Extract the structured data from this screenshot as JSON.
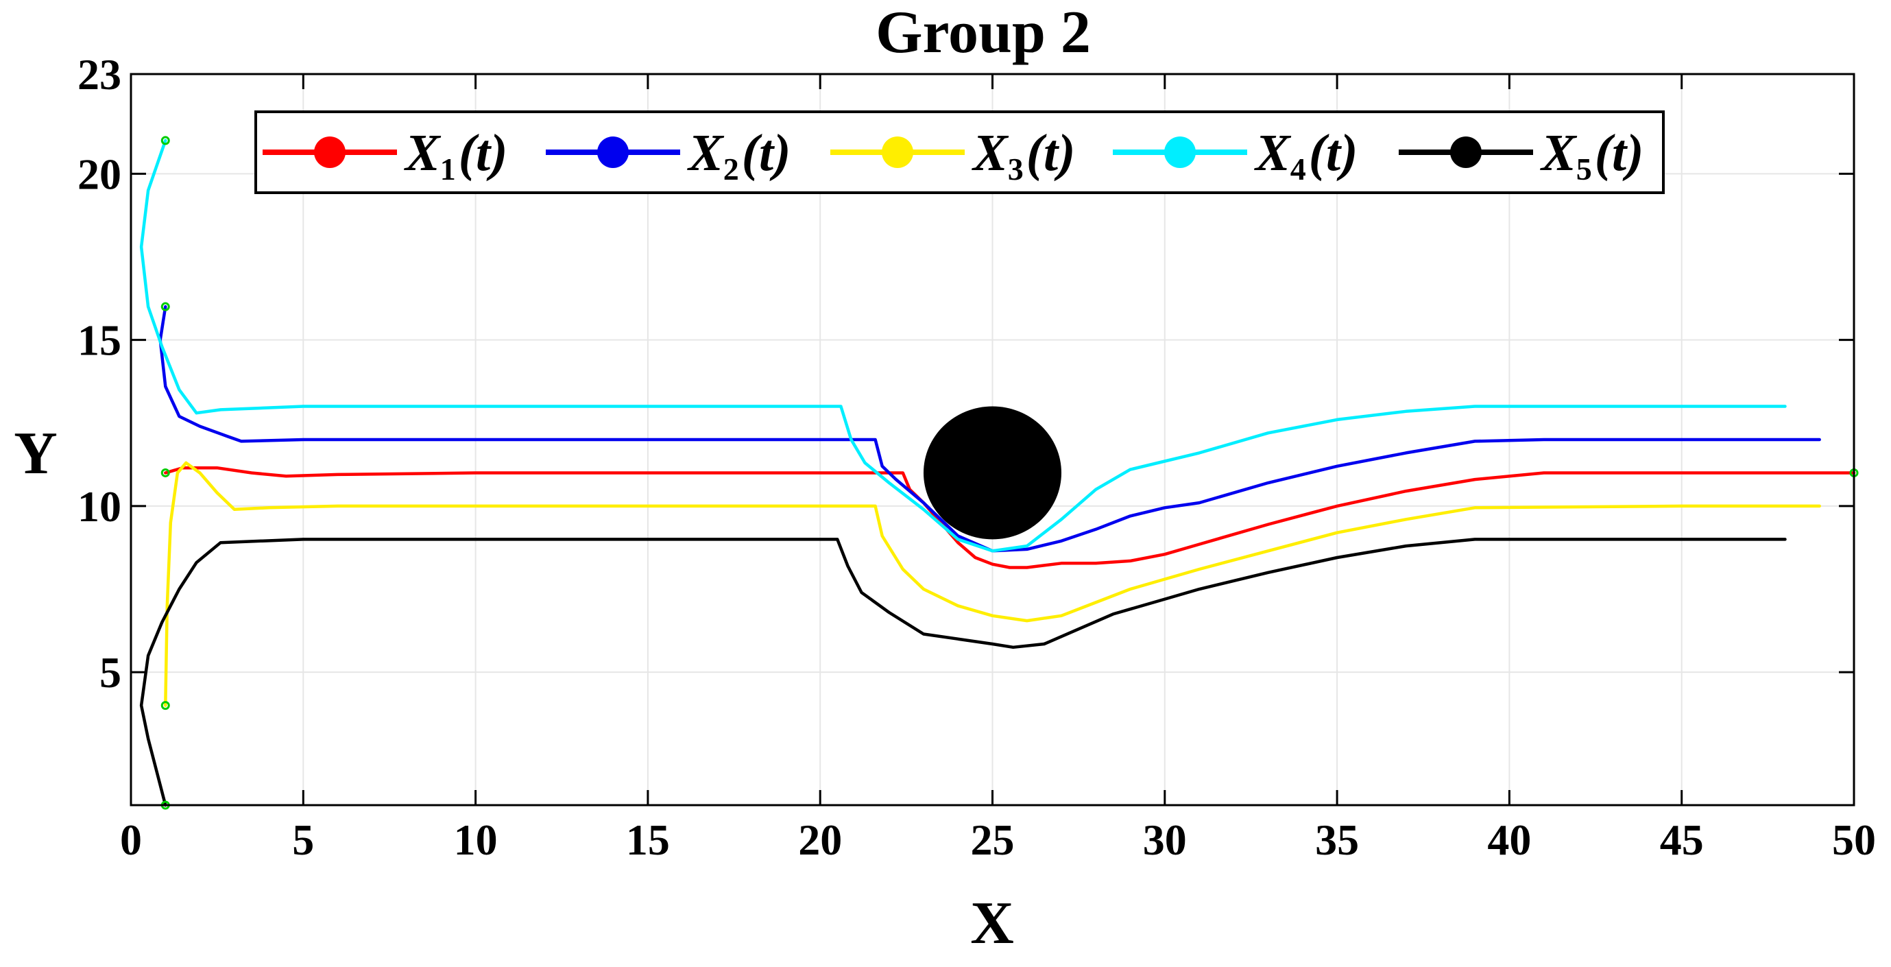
{
  "chart_data": {
    "type": "line",
    "title": "Group 2",
    "xlabel": "X",
    "ylabel": "Y",
    "xlim": [
      0,
      50
    ],
    "ylim": [
      1,
      23
    ],
    "xticks": [
      0,
      5,
      10,
      15,
      20,
      25,
      30,
      35,
      40,
      45,
      50
    ],
    "yticks": [
      5,
      10,
      15,
      20,
      23
    ],
    "grid": true,
    "legend_position": "top",
    "obstacle": {
      "label": "obstacle",
      "cx": 25,
      "cy": 11,
      "r": 2.0,
      "color": "#000000"
    },
    "start_marker_color": "#00cc00",
    "target": [
      50,
      11
    ],
    "series": [
      {
        "name": "X1(t)",
        "base": "X",
        "sub": "1",
        "arg": "(t)",
        "color": "#ff0000",
        "x": [
          1,
          1.5,
          2.5,
          3.5,
          4.5,
          6,
          10,
          15,
          20,
          22.4,
          22.6,
          23,
          23.5,
          24,
          24.5,
          25,
          25.5,
          26,
          27,
          28,
          29,
          30,
          31,
          33,
          35,
          37,
          39,
          41,
          45,
          48,
          50
        ],
        "y": [
          11,
          11.15,
          11.15,
          11.0,
          10.9,
          10.95,
          11,
          11,
          11,
          11,
          10.5,
          10.1,
          9.5,
          8.9,
          8.45,
          8.25,
          8.15,
          8.15,
          8.28,
          8.28,
          8.35,
          8.55,
          8.85,
          9.45,
          10.0,
          10.45,
          10.8,
          11.0,
          11.0,
          11.0,
          11.0
        ]
      },
      {
        "name": "X2(t)",
        "base": "X",
        "sub": "2",
        "arg": "(t)",
        "color": "#0000ee",
        "x": [
          1,
          0.85,
          1.0,
          1.4,
          2.0,
          2.8,
          3.2,
          5,
          10,
          15,
          20,
          21.6,
          21.8,
          22.2,
          23,
          24,
          25,
          26,
          27,
          28,
          29,
          30,
          31,
          33,
          35,
          37,
          39,
          41,
          45,
          49
        ],
        "y": [
          16,
          15.0,
          13.6,
          12.7,
          12.4,
          12.1,
          11.95,
          12.0,
          12.0,
          12.0,
          12.0,
          12.0,
          11.2,
          10.8,
          10.1,
          9.1,
          8.65,
          8.7,
          8.95,
          9.3,
          9.7,
          9.95,
          10.1,
          10.7,
          11.2,
          11.6,
          11.95,
          12.0,
          12.0,
          12.0
        ]
      },
      {
        "name": "X3(t)",
        "base": "X",
        "sub": "3",
        "arg": "(t)",
        "color": "#ffee00",
        "x": [
          1,
          1.05,
          1.15,
          1.35,
          1.6,
          2.0,
          2.5,
          3.0,
          4,
          6,
          10,
          15,
          20,
          21.6,
          21.8,
          22.4,
          23,
          24,
          25,
          26,
          27,
          28,
          29,
          30,
          31,
          33,
          35,
          37,
          39,
          45,
          49
        ],
        "y": [
          4,
          7,
          9.5,
          11.0,
          11.3,
          11.0,
          10.4,
          9.9,
          9.95,
          10.0,
          10.0,
          10.0,
          10.0,
          10.0,
          9.1,
          8.1,
          7.5,
          7.0,
          6.7,
          6.55,
          6.7,
          7.1,
          7.5,
          7.8,
          8.1,
          8.65,
          9.2,
          9.6,
          9.95,
          10.0,
          10.0
        ]
      },
      {
        "name": "X4(t)",
        "base": "X",
        "sub": "4",
        "arg": "(t)",
        "color": "#00eeff",
        "x": [
          1,
          0.5,
          0.3,
          0.5,
          0.9,
          1.4,
          1.9,
          2.6,
          5,
          10,
          15,
          20,
          20.6,
          20.9,
          21.3,
          22,
          23,
          24,
          25,
          26,
          27,
          28,
          29,
          30,
          31,
          33,
          35,
          37,
          39,
          45,
          48
        ],
        "y": [
          21,
          19.5,
          17.8,
          16.0,
          14.8,
          13.5,
          12.8,
          12.9,
          13.0,
          13.0,
          13.0,
          13.0,
          13.0,
          12.0,
          11.3,
          10.7,
          9.9,
          9.0,
          8.65,
          8.8,
          9.6,
          10.5,
          11.1,
          11.35,
          11.6,
          12.2,
          12.6,
          12.85,
          13.0,
          13.0,
          13.0
        ]
      },
      {
        "name": "X5(t)",
        "base": "X",
        "sub": "5",
        "arg": "(t)",
        "color": "#000000",
        "x": [
          1,
          0.5,
          0.3,
          0.5,
          0.9,
          1.4,
          1.9,
          2.6,
          5,
          10,
          15,
          20,
          20.5,
          20.8,
          21.2,
          22,
          23,
          24,
          25,
          25.6,
          26.5,
          27.5,
          28.5,
          30,
          31,
          33,
          35,
          37,
          39,
          45,
          48
        ],
        "y": [
          1,
          3.0,
          4.0,
          5.5,
          6.5,
          7.5,
          8.3,
          8.9,
          9.0,
          9.0,
          9.0,
          9.0,
          9.0,
          8.2,
          7.4,
          6.8,
          6.15,
          6.0,
          5.85,
          5.75,
          5.85,
          6.3,
          6.75,
          7.2,
          7.5,
          8.0,
          8.45,
          8.8,
          9.0,
          9.0,
          9.0
        ]
      }
    ]
  }
}
